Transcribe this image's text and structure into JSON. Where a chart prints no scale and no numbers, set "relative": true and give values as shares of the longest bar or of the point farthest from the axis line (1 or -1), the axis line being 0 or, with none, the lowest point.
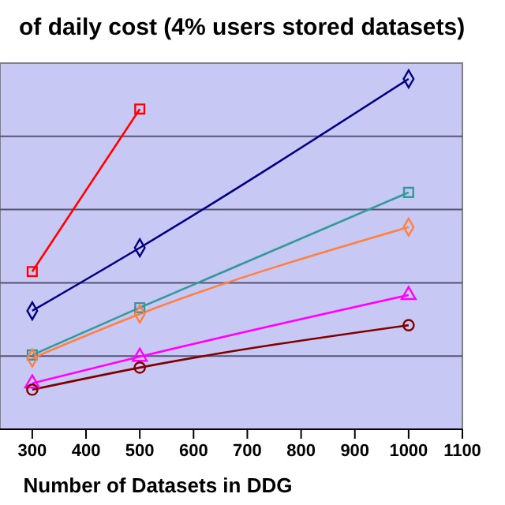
{
  "chart_data": {
    "type": "line",
    "title": "of daily cost (4% users stored datasets)",
    "xlabel": "Number of Datasets in DDG",
    "relative": true,
    "grid": "y",
    "xlim": [
      240,
      1100
    ],
    "xticks": [
      300,
      400,
      500,
      600,
      700,
      800,
      900,
      1000,
      1100
    ],
    "series": [
      {
        "color": "#ff0000",
        "marker": "square",
        "x": [
          300,
          500
        ],
        "values": [
          0.45,
          0.914
        ]
      },
      {
        "color": "#000080",
        "marker": "diamond",
        "x": [
          300,
          500,
          1000
        ],
        "values": [
          0.338,
          0.518,
          1
        ]
      },
      {
        "color": "#339999",
        "marker": "square",
        "x": [
          300,
          500,
          1000
        ],
        "values": [
          0.212,
          0.347,
          0.676
        ]
      },
      {
        "color": "#ff8040",
        "marker": "diamond",
        "x": [
          300,
          500,
          1000
        ],
        "values": [
          0.203,
          0.329,
          0.577
        ]
      },
      {
        "color": "#ff00ff",
        "marker": "triangle",
        "x": [
          300,
          500,
          1000
        ],
        "values": [
          0.131,
          0.207,
          0.383
        ]
      },
      {
        "color": "#800000",
        "marker": "circle",
        "x": [
          300,
          500,
          1000
        ],
        "values": [
          0.113,
          0.176,
          0.297
        ]
      }
    ]
  }
}
